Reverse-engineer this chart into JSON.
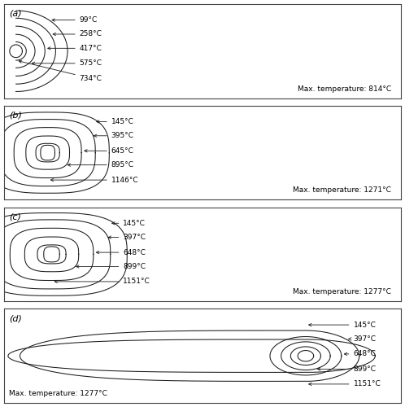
{
  "bg_color": "#ffffff",
  "line_color": "#1a1a1a",
  "text_color": "#000000",
  "panels": [
    {
      "label": "(a)",
      "contour_labels": [
        "99°C",
        "258°C",
        "417°C",
        "575°C",
        "734°C"
      ],
      "max_temp": "Max. temperature: 814°C",
      "max_temp_align": "right"
    },
    {
      "label": "(b)",
      "contour_labels": [
        "145°C",
        "395°C",
        "645°C",
        "895°C",
        "1146°C"
      ],
      "max_temp": "Max. temperature: 1271°C",
      "max_temp_align": "right"
    },
    {
      "label": "(c)",
      "contour_labels": [
        "145°C",
        "397°C",
        "648°C",
        "899°C",
        "1151°C"
      ],
      "max_temp": "Max. temperature: 1277°C",
      "max_temp_align": "right"
    },
    {
      "label": "(d)",
      "contour_labels": [
        "145°C",
        "397°C",
        "648°C",
        "899°C",
        "1151°C"
      ],
      "max_temp": "Max. temperature: 1277°C",
      "max_temp_align": "left"
    }
  ]
}
